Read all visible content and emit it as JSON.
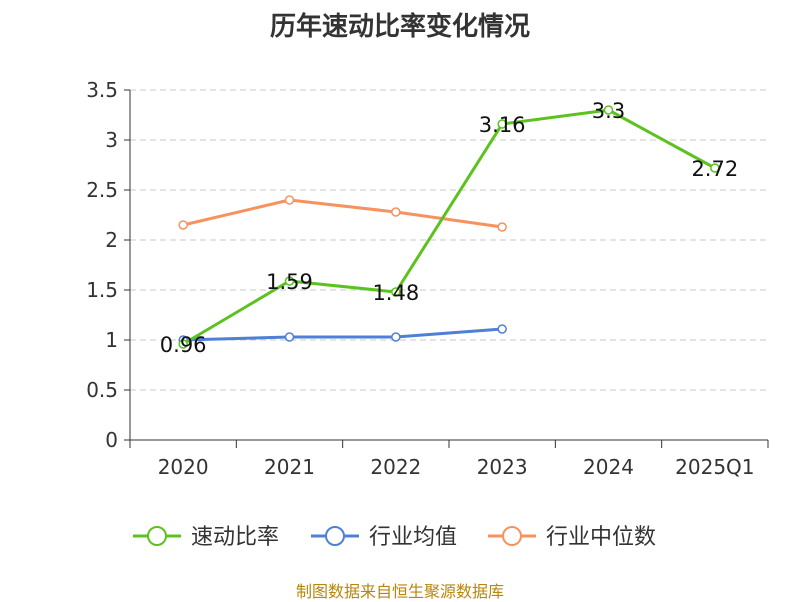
{
  "title": "历年速动比率变化情况",
  "source": "制图数据来自恒生聚源数据库",
  "chart_data": {
    "type": "line",
    "categories": [
      "2020",
      "2021",
      "2022",
      "2023",
      "2024",
      "2025Q1"
    ],
    "y_ticks": [
      "0",
      "0.5",
      "1",
      "1.5",
      "2",
      "2.5",
      "3",
      "3.5"
    ],
    "ylim": [
      0,
      3.5
    ],
    "grid": true,
    "legend_position": "bottom",
    "series": [
      {
        "name": "速动比率",
        "color": "#5cc21f",
        "values": [
          0.96,
          1.59,
          1.48,
          3.16,
          3.3,
          2.72
        ],
        "labels": [
          "0.96",
          "1.59",
          "1.48",
          "3.16",
          "3.3",
          "2.72"
        ]
      },
      {
        "name": "行业均值",
        "color": "#4f80d6",
        "values": [
          1.0,
          1.03,
          1.03,
          1.11,
          null,
          null
        ]
      },
      {
        "name": "行业中位数",
        "color": "#f5925e",
        "values": [
          2.15,
          2.4,
          2.28,
          2.13,
          null,
          null
        ]
      }
    ]
  }
}
